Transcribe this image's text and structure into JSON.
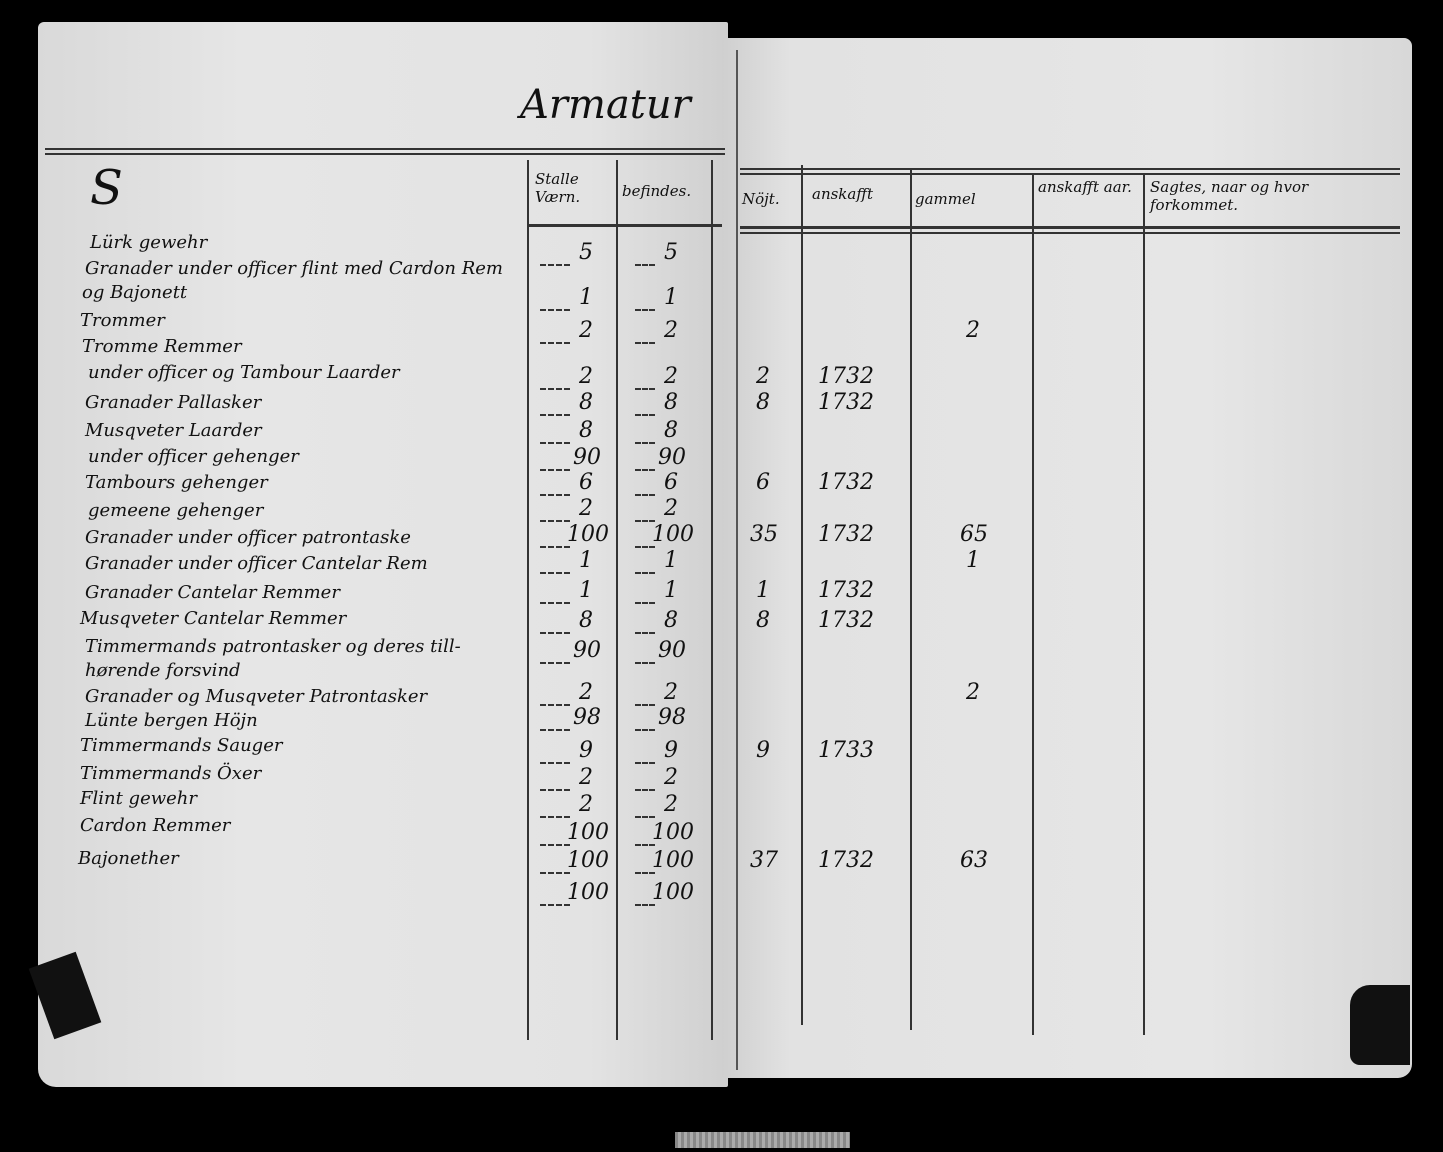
{
  "title": "Armatur",
  "left_headers": [
    "Stalle Værn.",
    "befindes."
  ],
  "right_headers": [
    "Nöjt.",
    "anskafft",
    "gammel",
    "anskafft aar.",
    "Sagtes, naar og hvor forkommet."
  ],
  "items": [
    "Lürk gewehr",
    "Granader under officer flint med Cardon Rem",
    "og Bajonett",
    "Trommer",
    "Tromme Remmer",
    "under officer og Tambour Laarder",
    "Granader Pallasker",
    "Musqveter Laarder",
    "under officer gehenger",
    "Tambours gehenger",
    "gemeene gehenger",
    "Granader under officer patrontaske",
    "Granader under officer Cantelar Rem",
    "Granader Cantelar Remmer",
    "Musqveter Cantelar Remmer",
    "Timmermands patrontasker og deres till-",
    "hørende forsvind",
    "Granader og Musqveter Patrontasker",
    "Lünte bergen Höjn",
    "Timmermands Sauger",
    "Timmermands Öxer",
    "Flint gewehr",
    "Cardon Remmer",
    "Bajonether"
  ],
  "values": [
    {
      "stalle": "5",
      "befindes": "5"
    },
    {
      "stalle": "1",
      "befindes": "1"
    },
    {
      "stalle": "2",
      "befindes": "2",
      "gammel": "2"
    },
    {
      "stalle": "2",
      "befindes": "2",
      "nojt": "2",
      "anskafft": "1732"
    },
    {
      "stalle": "8",
      "befindes": "8",
      "nojt": "8",
      "anskafft": "1732"
    },
    {
      "stalle": "8",
      "befindes": "8"
    },
    {
      "stalle": "90",
      "befindes": "90"
    },
    {
      "stalle": "6",
      "befindes": "6",
      "nojt": "6",
      "anskafft": "1732"
    },
    {
      "stalle": "2",
      "befindes": "2"
    },
    {
      "stalle": "100",
      "befindes": "100",
      "nojt": "35",
      "anskafft": "1732",
      "gammel": "65"
    },
    {
      "stalle": "1",
      "befindes": "1",
      "gammel": "1"
    },
    {
      "stalle": "1",
      "befindes": "1",
      "nojt": "1",
      "anskafft": "1732"
    },
    {
      "stalle": "8",
      "befindes": "8",
      "nojt": "8",
      "anskafft": "1732"
    },
    {
      "stalle": "90",
      "befindes": "90"
    },
    {
      "stalle": "2",
      "befindes": "2",
      "gammel": "2"
    },
    {
      "stalle": "98",
      "befindes": "98"
    },
    {
      "stalle": "9",
      "befindes": "9",
      "nojt": "9",
      "anskafft": "1733"
    },
    {
      "stalle": "2",
      "befindes": "2"
    },
    {
      "stalle": "2",
      "befindes": "2"
    },
    {
      "stalle": "100",
      "befindes": "100"
    },
    {
      "stalle": "100",
      "befindes": "100",
      "nojt": "37",
      "anskafft": "1732",
      "gammel": "63"
    },
    {
      "stalle": "100",
      "befindes": "100"
    }
  ]
}
